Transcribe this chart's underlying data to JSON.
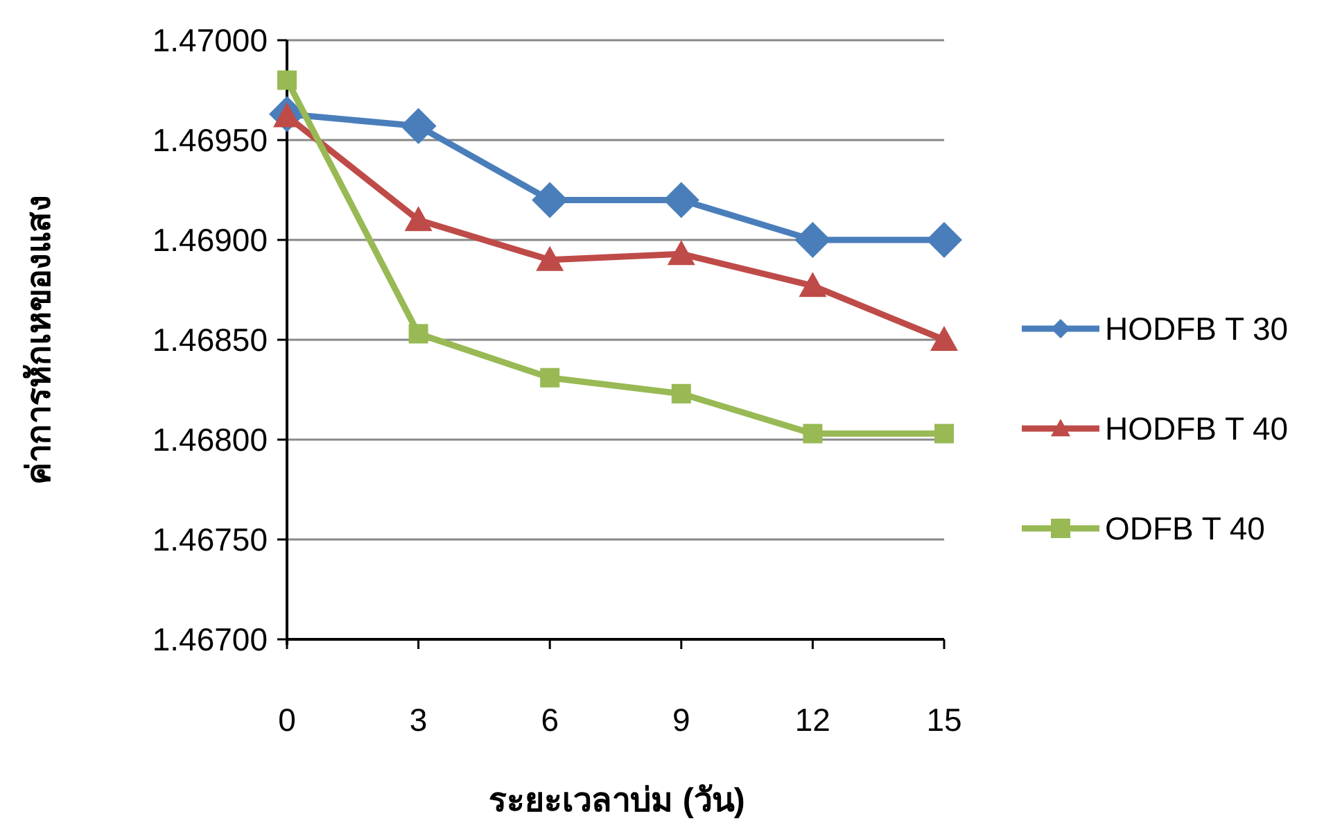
{
  "chart_data": {
    "type": "line",
    "xlabel": "ระยะเวลาบ่ม (วัน)",
    "ylabel": "ค่าการหักเหของแสง",
    "x": [
      0,
      3,
      6,
      9,
      12,
      15
    ],
    "series": [
      {
        "name": "HODFB T 30",
        "color": "#4a7ebb",
        "marker": "diamond",
        "values": [
          1.46963,
          1.46957,
          1.4692,
          1.4692,
          1.469,
          1.469
        ]
      },
      {
        "name": "HODFB T 40",
        "color": "#be4b48",
        "marker": "triangle",
        "values": [
          1.46962,
          1.4691,
          1.4689,
          1.46893,
          1.46877,
          1.4685
        ]
      },
      {
        "name": "ODFB T 40",
        "color": "#98b954",
        "marker": "square",
        "values": [
          1.4698,
          1.46853,
          1.46831,
          1.46823,
          1.46803,
          1.46803
        ]
      }
    ],
    "xlim": [
      0,
      15
    ],
    "xticks": [
      0,
      3,
      6,
      9,
      12,
      15
    ],
    "ylim": [
      1.467,
      1.47
    ],
    "yticks": [
      {
        "value": 1.467,
        "label": "1.46700"
      },
      {
        "value": 1.4675,
        "label": "1.46750"
      },
      {
        "value": 1.468,
        "label": "1.46800"
      },
      {
        "value": 1.4685,
        "label": "1.46850"
      },
      {
        "value": 1.469,
        "label": "1.46900"
      },
      {
        "value": 1.4695,
        "label": "1.46950"
      },
      {
        "value": 1.47,
        "label": "1.47000"
      }
    ],
    "grid": "y",
    "legend": "right",
    "line_style": "solid"
  }
}
